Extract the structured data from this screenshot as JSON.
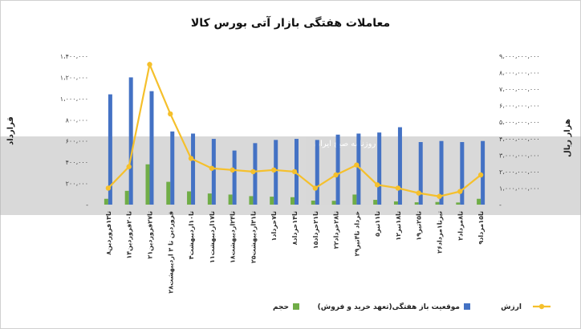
{
  "chart_data": {
    "type": "bar",
    "title": "معاملات هفتگی بازار آتی بورس کالا",
    "y_left_label": "قرارداد",
    "y_right_label": "هزار ریال",
    "y_left_ticks": [
      "۱،۴۰۰،۰۰۰",
      "۱،۲۰۰،۰۰۰",
      "۱،۰۰۰،۰۰۰",
      "۸۰۰،۰۰۰",
      "۶۰۰،۰۰۰",
      "۴۰۰،۰۰۰",
      "۲۰۰،۰۰۰",
      "-"
    ],
    "y_right_ticks": [
      "۹،۰۰۰،۰۰۰،۰۰۰",
      "۸،۰۰۰،۰۰۰،۰۰۰",
      "۷،۰۰۰،۰۰۰،۰۰۰",
      "۶،۰۰۰،۰۰۰،۰۰۰",
      "۵،۰۰۰،۰۰۰،۰۰۰",
      "۴،۰۰۰،۰۰۰،۰۰۰",
      "۳،۰۰۰،۰۰۰،۰۰۰",
      "۲،۰۰۰،۰۰۰،۰۰۰",
      "۱،۰۰۰،۰۰۰،۰۰۰",
      "-"
    ],
    "ylim_left": [
      0,
      1400000
    ],
    "ylim_right": [
      0,
      9000000000
    ],
    "categories": [
      "۸تا۱۳فروردین",
      "۱۴تا۲۰فروردین",
      "۲۱تا۲۷فروردین",
      "۲۸فروردین تا ۳ اردیبهشت",
      "۴تا۱۰اردیبهشت",
      "۱۱تا۱۷اردیبهشت",
      "۱۸تا۲۴اردیبهشت",
      "۲۵تا۳۱اردیبهشت",
      "۱تا۷خرداد",
      "۸تا۱۴خرداد",
      "۱۵تا۲۱خرداد",
      "۲۲تا۲۸خرداد",
      "۲۹خرداد تا۴تیر",
      "۵تا۱۱تیر",
      "۱۲تا۱۸تیر",
      "۱۹تا۲۵تیر",
      "۲۶تیرتا۱مرداد",
      "۲تا۸مرداد",
      "۹تا۱۵مرداد"
    ],
    "series": [
      {
        "name": "حجم",
        "axis": "left",
        "type": "bar",
        "color": "#70ad47",
        "values": [
          55000,
          130000,
          380000,
          215000,
          125000,
          105000,
          95000,
          80000,
          75000,
          70000,
          38000,
          36000,
          95000,
          45000,
          30000,
          22000,
          25000,
          20000,
          55000
        ]
      },
      {
        "name": "موقعیت باز هفتگی(تعهد خرید و فروش)",
        "axis": "left",
        "type": "bar",
        "color": "#4472c4",
        "values": [
          1040000,
          1200000,
          1070000,
          690000,
          670000,
          620000,
          510000,
          580000,
          610000,
          620000,
          610000,
          660000,
          670000,
          680000,
          730000,
          590000,
          600000,
          590000,
          600000
        ]
      },
      {
        "name": "ارزش",
        "axis": "right",
        "type": "line",
        "color": "#f5c02c",
        "values": [
          1000000000,
          2300000000,
          8500000000,
          5500000000,
          2800000000,
          2200000000,
          2100000000,
          2000000000,
          2100000000,
          2000000000,
          1000000000,
          1800000000,
          2400000000,
          1200000000,
          1000000000,
          700000000,
          500000000,
          800000000,
          1800000000
        ]
      }
    ],
    "legend": {
      "position": "bottom"
    },
    "grid": false
  }
}
